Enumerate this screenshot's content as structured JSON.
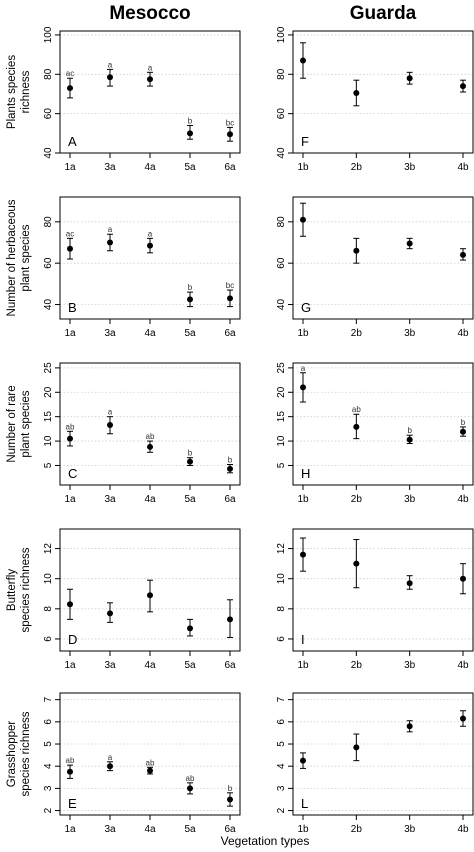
{
  "column_titles": [
    "Mesocco",
    "Guarda"
  ],
  "xlabel": "Vegetation types",
  "row_labels": [
    [
      "Plants species",
      "richness"
    ],
    [
      "Number of herbaceous",
      "plant species"
    ],
    [
      "Number of rare",
      "plant species"
    ],
    [
      "Butterfly",
      "species richness"
    ],
    [
      "Grasshopper",
      "species richness"
    ]
  ],
  "colors": {
    "points": "#000000",
    "grid": "#cfcfcf",
    "axis": "#000000",
    "letters": "#333333"
  },
  "chart_data": [
    {
      "type": "scatter",
      "panel": "A",
      "site": "Mesocco",
      "row": 0,
      "col": 0,
      "categories": [
        "1a",
        "3a",
        "4a",
        "5a",
        "6a"
      ],
      "values": [
        73,
        78.5,
        77.5,
        50,
        49.5
      ],
      "lower": [
        68,
        74,
        74,
        47,
        46
      ],
      "upper": [
        78,
        82.5,
        81,
        54,
        53
      ],
      "sig": [
        "ac",
        "a",
        "a",
        "b",
        "bc"
      ],
      "ylim": [
        40,
        102
      ],
      "yticks": [
        40,
        60,
        80,
        100
      ]
    },
    {
      "type": "scatter",
      "panel": "F",
      "site": "Guarda",
      "row": 0,
      "col": 1,
      "categories": [
        "1b",
        "2b",
        "3b",
        "4b"
      ],
      "values": [
        87,
        70.5,
        78,
        74
      ],
      "lower": [
        78,
        64,
        75,
        71
      ],
      "upper": [
        96,
        77,
        81,
        77
      ],
      "sig": [
        "",
        "",
        "",
        ""
      ],
      "ylim": [
        40,
        102
      ],
      "yticks": [
        40,
        60,
        80,
        100
      ]
    },
    {
      "type": "scatter",
      "panel": "B",
      "site": "Mesocco",
      "row": 1,
      "col": 0,
      "categories": [
        "1a",
        "3a",
        "4a",
        "5a",
        "6a"
      ],
      "values": [
        67,
        70,
        68.5,
        42.5,
        43
      ],
      "lower": [
        62,
        66,
        65,
        39,
        39
      ],
      "upper": [
        72,
        74,
        72,
        46,
        47
      ],
      "sig": [
        "ac",
        "a",
        "a",
        "b",
        "bc"
      ],
      "ylim": [
        33,
        92
      ],
      "yticks": [
        40,
        60,
        80
      ]
    },
    {
      "type": "scatter",
      "panel": "G",
      "site": "Guarda",
      "row": 1,
      "col": 1,
      "categories": [
        "1b",
        "2b",
        "3b",
        "4b"
      ],
      "values": [
        81,
        66,
        69.5,
        64
      ],
      "lower": [
        73,
        60,
        67,
        61.5
      ],
      "upper": [
        89,
        72,
        72,
        67
      ],
      "sig": [
        "",
        "",
        "",
        ""
      ],
      "ylim": [
        33,
        92
      ],
      "yticks": [
        40,
        60,
        80
      ]
    },
    {
      "type": "scatter",
      "panel": "C",
      "site": "Mesocco",
      "row": 2,
      "col": 0,
      "categories": [
        "1a",
        "3a",
        "4a",
        "5a",
        "6a"
      ],
      "values": [
        10.5,
        13.3,
        8.8,
        5.8,
        4.3
      ],
      "lower": [
        9,
        11.5,
        7.7,
        5,
        3.5
      ],
      "upper": [
        12,
        15,
        10,
        6.6,
        5.2
      ],
      "sig": [
        "ab",
        "a",
        "ab",
        "b",
        "b"
      ],
      "ylim": [
        1,
        26
      ],
      "yticks": [
        5,
        10,
        15,
        20,
        25
      ]
    },
    {
      "type": "scatter",
      "panel": "H",
      "site": "Guarda",
      "row": 2,
      "col": 1,
      "categories": [
        "1b",
        "2b",
        "3b",
        "4b"
      ],
      "values": [
        21,
        12.9,
        10.3,
        11.9
      ],
      "lower": [
        18,
        10.5,
        9.5,
        11
      ],
      "upper": [
        24,
        15.5,
        11.2,
        12.9
      ],
      "sig": [
        "a",
        "ab",
        "b",
        "b"
      ],
      "ylim": [
        1,
        26
      ],
      "yticks": [
        5,
        10,
        15,
        20,
        25
      ]
    },
    {
      "type": "scatter",
      "panel": "D",
      "site": "Mesocco",
      "row": 3,
      "col": 0,
      "categories": [
        "1a",
        "3a",
        "4a",
        "5a",
        "6a"
      ],
      "values": [
        8.3,
        7.7,
        8.9,
        6.7,
        7.3
      ],
      "lower": [
        7.3,
        7.1,
        7.8,
        6.2,
        6.1
      ],
      "upper": [
        9.3,
        8.4,
        9.9,
        7.3,
        8.6
      ],
      "sig": [
        "",
        "",
        "",
        "",
        ""
      ],
      "ylim": [
        5.2,
        13.3
      ],
      "yticks": [
        6,
        8,
        10,
        12
      ]
    },
    {
      "type": "scatter",
      "panel": "I",
      "site": "Guarda",
      "row": 3,
      "col": 1,
      "categories": [
        "1b",
        "2b",
        "3b",
        "4b"
      ],
      "values": [
        11.6,
        11,
        9.7,
        10
      ],
      "lower": [
        10.5,
        9.4,
        9.3,
        9
      ],
      "upper": [
        12.7,
        12.6,
        10.2,
        11
      ],
      "sig": [
        "",
        "",
        "",
        ""
      ],
      "ylim": [
        5.2,
        13.3
      ],
      "yticks": [
        6,
        8,
        10,
        12
      ]
    },
    {
      "type": "scatter",
      "panel": "E",
      "site": "Mesocco",
      "row": 4,
      "col": 0,
      "categories": [
        "1a",
        "3a",
        "4a",
        "5a",
        "6a"
      ],
      "values": [
        3.75,
        4,
        3.8,
        3,
        2.5
      ],
      "lower": [
        3.45,
        3.8,
        3.65,
        2.75,
        2.2
      ],
      "upper": [
        4.05,
        4.2,
        3.95,
        3.25,
        2.8
      ],
      "sig": [
        "ab",
        "a",
        "ab",
        "ab",
        "b"
      ],
      "ylim": [
        1.8,
        7.3
      ],
      "yticks": [
        2,
        3,
        4,
        5,
        6,
        7
      ]
    },
    {
      "type": "scatter",
      "panel": "L",
      "site": "Guarda",
      "row": 4,
      "col": 1,
      "categories": [
        "1b",
        "2b",
        "3b",
        "4b"
      ],
      "values": [
        4.25,
        4.85,
        5.8,
        6.15
      ],
      "lower": [
        3.9,
        4.25,
        5.55,
        5.8
      ],
      "upper": [
        4.6,
        5.45,
        6.05,
        6.5
      ],
      "sig": [
        "",
        "",
        "",
        ""
      ],
      "ylim": [
        1.8,
        7.3
      ],
      "yticks": [
        2,
        3,
        4,
        5,
        6,
        7
      ]
    }
  ]
}
